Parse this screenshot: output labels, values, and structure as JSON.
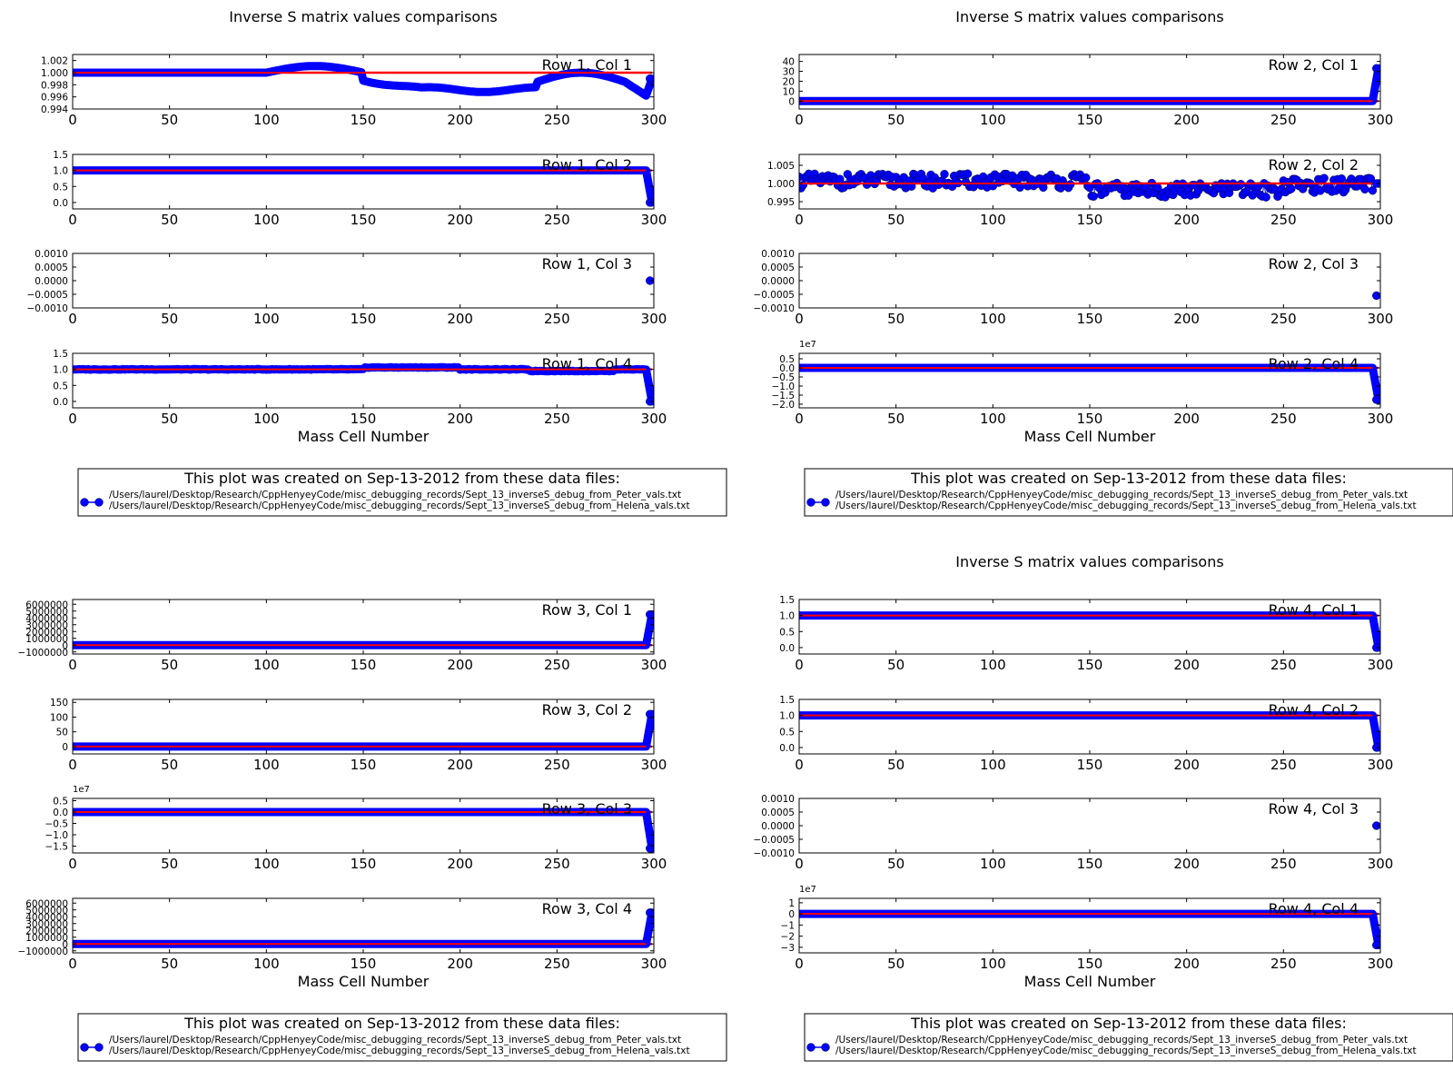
{
  "chart_data": [
    {
      "type": "line",
      "title": "Inverse S matrix values comparisons",
      "xlabel": "Mass Cell Number",
      "legend": {
        "title": "This plot was created on Sep-13-2012 from these data files:",
        "entries": [
          "/Users/laurel/Desktop/Research/CppHenyeyCode/misc_debugging_records/Sept_13_inverseS_debug_from_Peter_vals.txt",
          "/Users/laurel/Desktop/Research/CppHenyeyCode/misc_debugging_records/Sept_13_inverseS_debug_from_Helena_vals.txt"
        ]
      },
      "panels": [
        {
          "label": "Row 1, Col 1",
          "xlim": [
            0,
            300
          ],
          "ylim": [
            0.994,
            1.003
          ],
          "yticks": [
            0.994,
            0.996,
            0.998,
            1.0,
            1.002
          ],
          "ytick_labels": [
            "0.994",
            "0.996",
            "0.998",
            "1.000",
            "1.002"
          ],
          "ref": 1.0,
          "kind": "wave",
          "last": 0.999
        },
        {
          "label": "Row 1, Col 2",
          "xlim": [
            0,
            300
          ],
          "ylim": [
            -0.2,
            1.5
          ],
          "yticks": [
            0.0,
            0.5,
            1.0,
            1.5
          ],
          "ytick_labels": [
            "0.0",
            "0.5",
            "1.0",
            "1.5"
          ],
          "ref": 1.0,
          "kind": "flat",
          "level": 1.0,
          "last": 0.0
        },
        {
          "label": "Row 1, Col 3",
          "xlim": [
            0,
            300
          ],
          "ylim": [
            -0.001,
            0.001
          ],
          "yticks": [
            -0.001,
            -0.0005,
            0.0,
            0.0005,
            0.001
          ],
          "ytick_labels": [
            "−0.0010",
            "−0.0005",
            "0.0000",
            "0.0005",
            "0.0010"
          ],
          "ref": null,
          "kind": "single",
          "last": 0.0
        },
        {
          "label": "Row 1, Col 4",
          "xlim": [
            0,
            300
          ],
          "ylim": [
            -0.2,
            1.5
          ],
          "yticks": [
            0.0,
            0.5,
            1.0,
            1.5
          ],
          "ytick_labels": [
            "0.0",
            "0.5",
            "1.0",
            "1.5"
          ],
          "ref": 1.0,
          "kind": "bumpy",
          "level": 1.0,
          "last": 0.0
        }
      ]
    },
    {
      "type": "line",
      "title": "Inverse S matrix values comparisons",
      "xlabel": "Mass Cell Number",
      "legend": {
        "title": "This plot was created on Sep-13-2012 from these data files:",
        "entries": [
          "/Users/laurel/Desktop/Research/CppHenyeyCode/misc_debugging_records/Sept_13_inverseS_debug_from_Peter_vals.txt",
          "/Users/laurel/Desktop/Research/CppHenyeyCode/misc_debugging_records/Sept_13_inverseS_debug_from_Helena_vals.txt"
        ]
      },
      "panels": [
        {
          "label": "Row 2, Col 1",
          "xlim": [
            0,
            300
          ],
          "ylim": [
            -8,
            47
          ],
          "yticks": [
            0,
            10,
            20,
            30,
            40
          ],
          "ytick_labels": [
            "0",
            "10",
            "20",
            "30",
            "40"
          ],
          "ref": 0.0,
          "kind": "flat",
          "level": 0.0,
          "last": 33
        },
        {
          "label": "Row 2, Col 2",
          "xlim": [
            0,
            300
          ],
          "ylim": [
            0.993,
            1.008
          ],
          "yticks": [
            0.995,
            1.0,
            1.005
          ],
          "ytick_labels": [
            "0.995",
            "1.000",
            "1.005"
          ],
          "ref": 1.0,
          "kind": "scatter",
          "last": 1.0
        },
        {
          "label": "Row 2, Col 3",
          "xlim": [
            0,
            300
          ],
          "ylim": [
            -0.001,
            0.001
          ],
          "yticks": [
            -0.001,
            -0.0005,
            0.0,
            0.0005,
            0.001
          ],
          "ytick_labels": [
            "−0.0010",
            "−0.0005",
            "0.0000",
            "0.0005",
            "0.0010"
          ],
          "ref": null,
          "kind": "single",
          "last": -0.00055
        },
        {
          "label": "Row 2, Col 4",
          "xlim": [
            0,
            300
          ],
          "ylim": [
            -22000000.0,
            8000000.0
          ],
          "yticks": [
            -20000000.0,
            -15000000.0,
            -10000000.0,
            -5000000.0,
            0.0,
            5000000.0
          ],
          "ytick_labels": [
            "−2.0",
            "−1.5",
            "−1.0",
            "−0.5",
            "0.0",
            "0.5"
          ],
          "multiplier": "1e7",
          "ref": 0.0,
          "kind": "flat",
          "level": 0.0,
          "last": -17500000.0
        }
      ]
    },
    {
      "type": "line",
      "title": "",
      "xlabel": "Mass Cell Number",
      "legend": {
        "title": "This plot was created on Sep-13-2012 from these data files:",
        "entries": [
          "/Users/laurel/Desktop/Research/CppHenyeyCode/misc_debugging_records/Sept_13_inverseS_debug_from_Peter_vals.txt",
          "/Users/laurel/Desktop/Research/CppHenyeyCode/misc_debugging_records/Sept_13_inverseS_debug_from_Helena_vals.txt"
        ]
      },
      "panels": [
        {
          "label": "Row 3, Col 1",
          "xlim": [
            0,
            300
          ],
          "ylim": [
            -1300000,
            6700000
          ],
          "yticks": [
            -1000000,
            0,
            1000000,
            2000000,
            3000000,
            4000000,
            5000000,
            6000000
          ],
          "ytick_labels": [
            "−1000000",
            "0",
            "1000000",
            "2000000",
            "3000000",
            "4000000",
            "5000000",
            "6000000"
          ],
          "ref": 0.0,
          "kind": "flat",
          "level": 0.0,
          "last": 4500000
        },
        {
          "label": "Row 3, Col 2",
          "xlim": [
            0,
            300
          ],
          "ylim": [
            -25,
            160
          ],
          "yticks": [
            0,
            50,
            100,
            150
          ],
          "ytick_labels": [
            "0",
            "50",
            "100",
            "150"
          ],
          "ref": 0.0,
          "kind": "flat",
          "level": 0.0,
          "last": 110
        },
        {
          "label": "Row 3, Col 3",
          "xlim": [
            0,
            300
          ],
          "ylim": [
            -18000000.0,
            6000000.0
          ],
          "yticks": [
            -15000000.0,
            -10000000.0,
            -5000000.0,
            0.0,
            5000000.0
          ],
          "ytick_labels": [
            "−1.5",
            "−1.0",
            "−0.5",
            "0.0",
            "0.5"
          ],
          "multiplier": "1e7",
          "ref": 0.0,
          "kind": "flat",
          "level": 0.0,
          "last": -16000000.0
        },
        {
          "label": "Row 3, Col 4",
          "xlim": [
            0,
            300
          ],
          "ylim": [
            -1300000,
            6700000
          ],
          "yticks": [
            -1000000,
            0,
            1000000,
            2000000,
            3000000,
            4000000,
            5000000,
            6000000
          ],
          "ytick_labels": [
            "−1000000",
            "0",
            "1000000",
            "2000000",
            "3000000",
            "4000000",
            "5000000",
            "6000000"
          ],
          "ref": 0.0,
          "kind": "flat",
          "level": 0.0,
          "last": 4600000
        }
      ]
    },
    {
      "type": "line",
      "title": "Inverse S matrix values comparisons",
      "xlabel": "Mass Cell Number",
      "legend": {
        "title": "This plot was created on Sep-13-2012 from these data files:",
        "entries": [
          "/Users/laurel/Desktop/Research/CppHenyeyCode/misc_debugging_records/Sept_13_inverseS_debug_from_Peter_vals.txt",
          "/Users/laurel/Desktop/Research/CppHenyeyCode/misc_debugging_records/Sept_13_inverseS_debug_from_Helena_vals.txt"
        ]
      },
      "panels": [
        {
          "label": "Row 4, Col 1",
          "xlim": [
            0,
            300
          ],
          "ylim": [
            -0.2,
            1.5
          ],
          "yticks": [
            0.0,
            0.5,
            1.0,
            1.5
          ],
          "ytick_labels": [
            "0.0",
            "0.5",
            "1.0",
            "1.5"
          ],
          "ref": 1.0,
          "kind": "flat",
          "level": 1.0,
          "last": 0.0
        },
        {
          "label": "Row 4, Col 2",
          "xlim": [
            0,
            300
          ],
          "ylim": [
            -0.2,
            1.5
          ],
          "yticks": [
            0.0,
            0.5,
            1.0,
            1.5
          ],
          "ytick_labels": [
            "0.0",
            "0.5",
            "1.0",
            "1.5"
          ],
          "ref": 1.0,
          "kind": "flat",
          "level": 1.0,
          "last": 0.0
        },
        {
          "label": "Row 4, Col 3",
          "xlim": [
            0,
            300
          ],
          "ylim": [
            -0.001,
            0.001
          ],
          "yticks": [
            -0.001,
            -0.0005,
            0.0,
            0.0005,
            0.001
          ],
          "ytick_labels": [
            "−0.0010",
            "−0.0005",
            "0.0000",
            "0.0005",
            "0.0010"
          ],
          "ref": null,
          "kind": "single",
          "last": 0.0
        },
        {
          "label": "Row 4, Col 4",
          "xlim": [
            0,
            300
          ],
          "ylim": [
            -35000000.0,
            14000000.0
          ],
          "yticks": [
            -30000000.0,
            -20000000.0,
            -10000000.0,
            0,
            10000000.0
          ],
          "ytick_labels": [
            "−3",
            "−2",
            "−1",
            "0",
            "1"
          ],
          "multiplier": "1e7",
          "ref": 0.0,
          "kind": "flat",
          "level": 0.0,
          "last": -28000000.0
        }
      ]
    }
  ],
  "style": {
    "series_colors": [
      "#0000ff",
      "#ff0000"
    ],
    "marker_color": "#0000ff",
    "reference_color": "#ff0000"
  },
  "xticks": [
    0,
    50,
    100,
    150,
    200,
    250,
    300
  ]
}
